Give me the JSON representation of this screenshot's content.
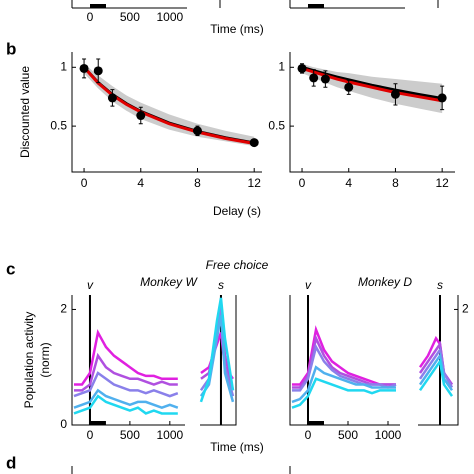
{
  "panel_labels": [
    "b",
    "c",
    "d"
  ],
  "top_fragment": {
    "xticks": [
      0,
      500,
      1000
    ],
    "xlabel": "Time (ms)"
  },
  "panel_c_title": "Free choice",
  "panel_c_xlabel": "Time (ms)",
  "panel_c_ylabel": [
    "Population activity",
    "(norm)"
  ],
  "chart_data": [
    {
      "type": "errorbar-fit",
      "xlabel": "Delay (s)",
      "ylabel": "Discounted value",
      "x": [
        0,
        1,
        2,
        4,
        8,
        12
      ],
      "values": [
        0.99,
        0.97,
        0.74,
        0.59,
        0.46,
        0.36
      ],
      "errors": [
        0.08,
        0.1,
        0.07,
        0.07,
        0.04,
        0.02
      ],
      "fit_x": [
        0,
        1,
        2,
        3,
        4,
        6,
        8,
        10,
        12
      ],
      "fit_black": [
        1,
        0.87,
        0.769,
        0.69,
        0.625,
        0.526,
        0.455,
        0.4,
        0.357
      ],
      "fit_red": [
        1,
        0.865,
        0.763,
        0.684,
        0.62,
        0.52,
        0.45,
        0.395,
        0.352
      ],
      "band_low": [
        0.95,
        0.82,
        0.71,
        0.63,
        0.56,
        0.47,
        0.41,
        0.37,
        0.33
      ],
      "band_high": [
        1.03,
        0.93,
        0.84,
        0.76,
        0.7,
        0.6,
        0.52,
        0.46,
        0.41
      ],
      "point_color": "#000000",
      "fit_colors": [
        "#000000",
        "#e00000"
      ],
      "band_color": "#cccccc",
      "xlim": [
        -0.85,
        12.55
      ],
      "ylim": [
        0.11,
        1.13
      ],
      "xticks": [
        0,
        4,
        8,
        12
      ],
      "yticks": [
        0.5,
        1
      ]
    },
    {
      "type": "errorbar-fit",
      "x": [
        0,
        1,
        2,
        4,
        8,
        12
      ],
      "values": [
        0.99,
        0.91,
        0.9,
        0.83,
        0.77,
        0.74
      ],
      "errors": [
        0.04,
        0.07,
        0.07,
        0.06,
        0.09,
        0.1
      ],
      "fit_x": [
        0,
        1,
        2,
        3,
        4,
        6,
        8,
        10,
        12
      ],
      "fit_black": [
        1,
        0.971,
        0.943,
        0.917,
        0.893,
        0.847,
        0.806,
        0.769,
        0.735
      ],
      "fit_red": [
        0.99,
        0.96,
        0.93,
        0.9,
        0.875,
        0.83,
        0.785,
        0.75,
        0.715
      ],
      "band_low": [
        0.95,
        0.91,
        0.87,
        0.83,
        0.8,
        0.74,
        0.69,
        0.65,
        0.61
      ],
      "band_high": [
        1.03,
        1.0,
        0.98,
        0.96,
        0.95,
        0.92,
        0.9,
        0.88,
        0.86
      ],
      "point_color": "#000000",
      "fit_colors": [
        "#000000",
        "#e00000"
      ],
      "band_color": "#cccccc",
      "xlim": [
        -1.03,
        13.1
      ],
      "ylim": [
        0.11,
        1.13
      ],
      "xticks": [
        0,
        4,
        8,
        12
      ],
      "yticks": [
        0.5,
        1
      ]
    },
    {
      "type": "line",
      "subtitle": "Monkey W",
      "v_label": "v",
      "s_label": "s",
      "x": [
        -200,
        -100,
        0,
        100,
        200,
        300,
        400,
        500,
        600,
        700,
        800,
        900,
        1000,
        1100
      ],
      "s_x": [
        -250,
        -150,
        -50,
        0,
        50,
        150
      ],
      "series": [
        {
          "color": "#e020e0",
          "values": [
            0.7,
            0.7,
            0.9,
            1.6,
            1.35,
            1.2,
            1.1,
            1.0,
            0.9,
            0.85,
            0.85,
            0.8,
            0.8,
            0.8
          ],
          "s_values": [
            0.9,
            1.0,
            1.4,
            1.6,
            1.0,
            0.8
          ]
        },
        {
          "color": "#b050e0",
          "values": [
            0.6,
            0.6,
            0.7,
            1.2,
            1.0,
            0.9,
            0.85,
            0.8,
            0.8,
            0.75,
            0.7,
            0.75,
            0.7,
            0.7
          ],
          "s_values": [
            0.8,
            0.9,
            1.6,
            2.0,
            1.2,
            0.6
          ]
        },
        {
          "color": "#8a80ea",
          "values": [
            0.5,
            0.55,
            0.6,
            0.9,
            0.8,
            0.7,
            0.65,
            0.6,
            0.6,
            0.55,
            0.6,
            0.55,
            0.5,
            0.55
          ],
          "s_values": [
            0.6,
            0.8,
            1.7,
            2.1,
            1.0,
            0.5
          ]
        },
        {
          "color": "#50b0ee",
          "values": [
            0.3,
            0.35,
            0.4,
            0.6,
            0.5,
            0.45,
            0.4,
            0.35,
            0.4,
            0.4,
            0.35,
            0.3,
            0.35,
            0.3
          ],
          "s_values": [
            0.5,
            0.7,
            1.5,
            1.9,
            0.9,
            0.4
          ]
        },
        {
          "color": "#20d8f0",
          "values": [
            0.2,
            0.25,
            0.3,
            0.5,
            0.4,
            0.35,
            0.3,
            0.25,
            0.3,
            0.2,
            0.25,
            0.2,
            0.2,
            0.2
          ],
          "s_values": [
            0.4,
            0.8,
            1.8,
            2.2,
            1.5,
            0.6
          ]
        }
      ],
      "xlim": [
        -225,
        1190
      ],
      "s_xlim": [
        -262,
        188
      ],
      "ylim": [
        0,
        2.25
      ],
      "xticks": [
        0,
        500,
        1000
      ],
      "yticks": [
        0,
        2
      ]
    },
    {
      "type": "line",
      "subtitle": "Monkey D",
      "v_label": "v",
      "s_label": "s",
      "x": [
        -200,
        -100,
        0,
        100,
        200,
        300,
        400,
        500,
        600,
        700,
        800,
        900,
        1000,
        1100
      ],
      "s_x": [
        -250,
        -150,
        -50,
        0,
        50,
        150
      ],
      "series": [
        {
          "color": "#e020e0",
          "values": [
            0.7,
            0.7,
            0.9,
            1.65,
            1.3,
            1.1,
            1.0,
            0.9,
            0.85,
            0.8,
            0.75,
            0.7,
            0.7,
            0.7
          ],
          "s_values": [
            1.0,
            1.2,
            1.5,
            1.4,
            0.9,
            0.7
          ]
        },
        {
          "color": "#b050e0",
          "values": [
            0.65,
            0.65,
            0.85,
            1.5,
            1.2,
            1.0,
            0.9,
            0.85,
            0.8,
            0.75,
            0.7,
            0.7,
            0.7,
            0.7
          ],
          "s_values": [
            0.9,
            1.1,
            1.3,
            1.4,
            0.9,
            0.7
          ]
        },
        {
          "color": "#8a80ea",
          "values": [
            0.6,
            0.6,
            0.8,
            1.35,
            1.1,
            0.95,
            0.85,
            0.8,
            0.75,
            0.7,
            0.7,
            0.7,
            0.65,
            0.7
          ],
          "s_values": [
            0.8,
            1.0,
            1.2,
            1.3,
            0.9,
            0.65
          ]
        },
        {
          "color": "#50b0ee",
          "values": [
            0.4,
            0.45,
            0.6,
            1.0,
            0.9,
            0.85,
            0.8,
            0.75,
            0.7,
            0.7,
            0.65,
            0.65,
            0.65,
            0.65
          ],
          "s_values": [
            0.7,
            0.9,
            1.1,
            1.2,
            0.8,
            0.6
          ]
        },
        {
          "color": "#20d8f0",
          "values": [
            0.3,
            0.35,
            0.5,
            0.8,
            0.75,
            0.7,
            0.65,
            0.6,
            0.6,
            0.6,
            0.55,
            0.6,
            0.6,
            0.6
          ],
          "s_values": [
            0.6,
            0.8,
            1.0,
            1.1,
            0.7,
            0.5
          ]
        }
      ],
      "xlim": [
        -225,
        1150
      ],
      "s_xlim": [
        -275,
        225
      ],
      "ylim": [
        0,
        2.25
      ],
      "xticks": [
        0,
        500,
        1000
      ],
      "yticks": [
        2
      ],
      "ytick_side": "right"
    }
  ]
}
